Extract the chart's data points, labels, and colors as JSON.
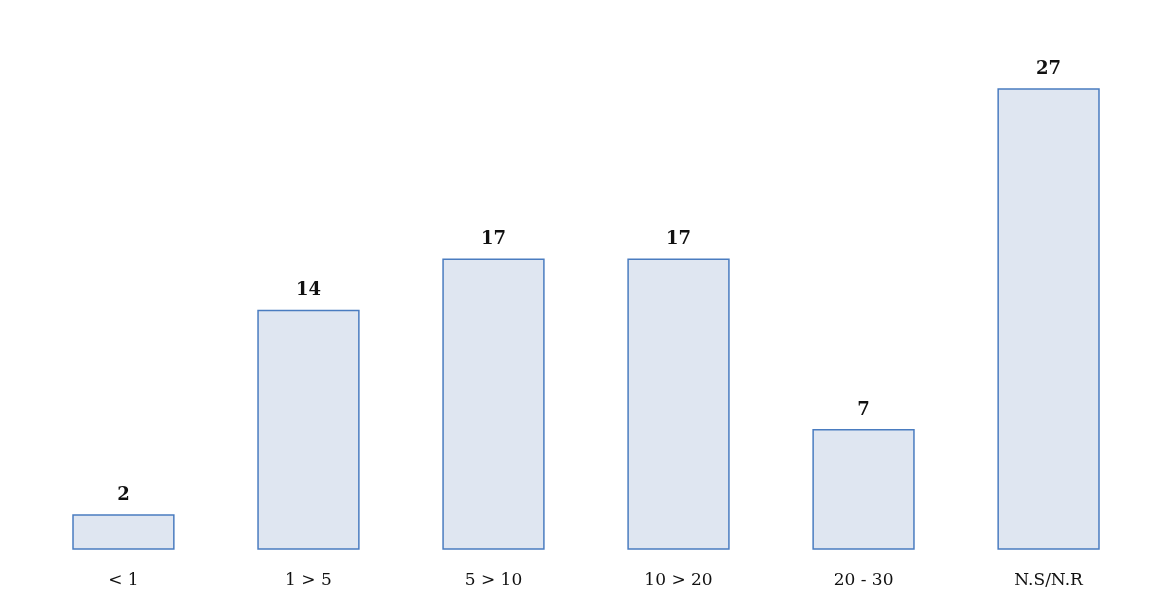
{
  "chart_data": {
    "type": "bar",
    "categories": [
      "< 1",
      "1 > 5",
      "5 > 10",
      "10 > 20",
      "20 - 30",
      "N.S/N.R"
    ],
    "values": [
      2,
      14,
      17,
      17,
      7,
      27
    ],
    "color": "#dfe6f1",
    "data_labels": true
  }
}
